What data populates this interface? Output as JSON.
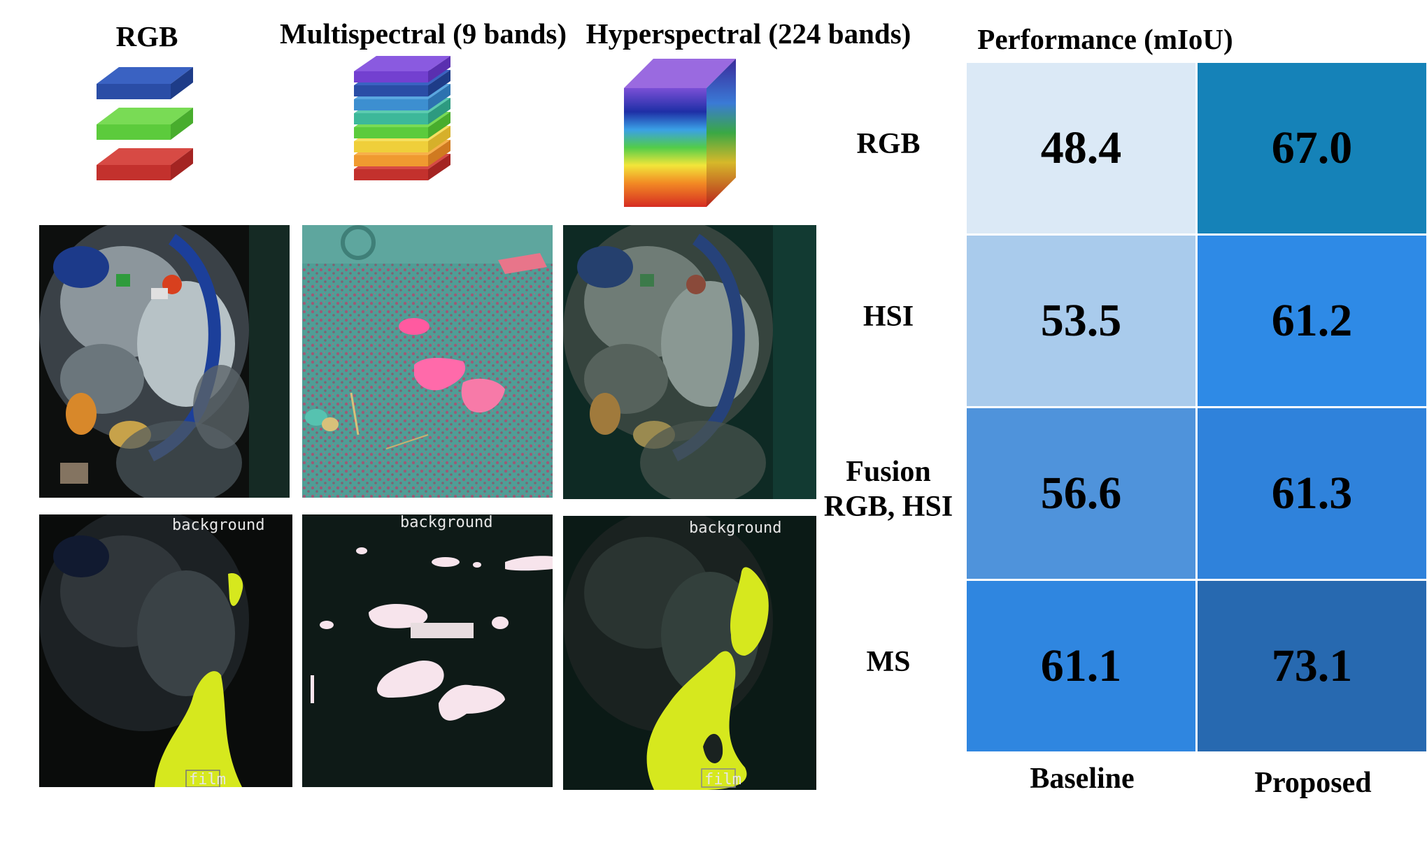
{
  "headers": {
    "rgb": "RGB",
    "ms": "Multispectral (9 bands)",
    "hsi": "Hyperspectral (224 bands)"
  },
  "mask_labels": {
    "rgb_background": "background",
    "rgb_film": "film",
    "ms_background": "background",
    "hsi_background": "background",
    "hsi_film": "film"
  },
  "icons": {
    "rgb": "stacked-rgb-layers-icon",
    "ms": "stacked-multispectral-layers-icon",
    "hsi": "hyperspectral-cube-icon"
  },
  "colors": {
    "mask_yellow": "#d6e81e",
    "mask_pink": "#f7e4ec",
    "ms_scene_teal": "#4f9e96",
    "heat_low": "#dbe9f6",
    "heat_high": "#1f6fb5"
  },
  "chart_data": {
    "type": "heatmap",
    "title": "Performance (mIoU)",
    "rows": [
      "RGB",
      "HSI",
      "Fusion\nRGB, HSI",
      "MS"
    ],
    "row_labels": [
      {
        "lines": [
          "RGB"
        ]
      },
      {
        "lines": [
          "HSI"
        ]
      },
      {
        "lines": [
          "Fusion",
          "RGB, HSI"
        ]
      },
      {
        "lines": [
          "MS"
        ]
      }
    ],
    "columns": [
      "Baseline",
      "Proposed"
    ],
    "values": [
      [
        48.4,
        67.0
      ],
      [
        53.5,
        61.2
      ],
      [
        56.6,
        61.3
      ],
      [
        61.1,
        73.1
      ]
    ],
    "value_labels": [
      [
        "48.4",
        "67.0"
      ],
      [
        "53.5",
        "61.2"
      ],
      [
        "56.6",
        "61.3"
      ],
      [
        "61.1",
        "73.1"
      ]
    ],
    "cell_colors": [
      [
        "#dbe9f6",
        "#1582b8"
      ],
      [
        "#a9cbec",
        "#2e8ae6"
      ],
      [
        "#4f93db",
        "#2f82db"
      ],
      [
        "#2f86e0",
        "#2769b0"
      ]
    ]
  }
}
